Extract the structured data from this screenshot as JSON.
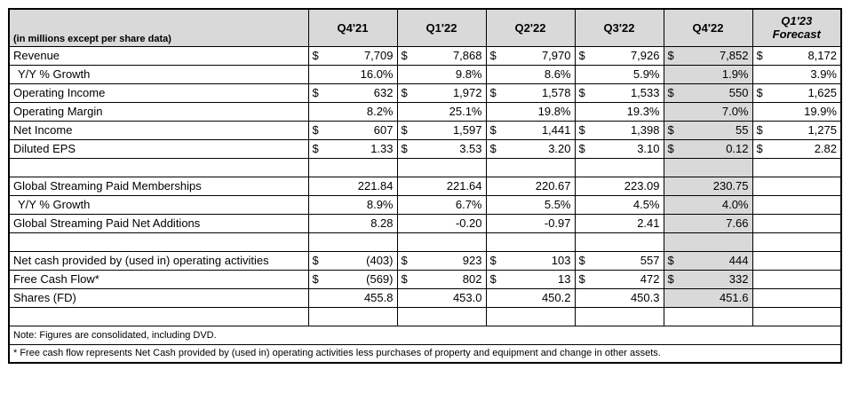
{
  "colors": {
    "header_bg": "#d9d9d9",
    "highlight_bg": "#d9d9d9",
    "border": "#000000",
    "text": "#000000"
  },
  "chart_data": {
    "type": "table",
    "corner_label": "(in millions except per share data)",
    "highlighted_column": "Q4'22",
    "columns": [
      {
        "id": "q4-21",
        "label": "Q4'21",
        "shaded": false,
        "italic": false
      },
      {
        "id": "q1-22",
        "label": "Q1'22",
        "shaded": false,
        "italic": false
      },
      {
        "id": "q2-22",
        "label": "Q2'22",
        "shaded": false,
        "italic": false
      },
      {
        "id": "q3-22",
        "label": "Q3'22",
        "shaded": false,
        "italic": false
      },
      {
        "id": "q4-22",
        "label": "Q4'22",
        "shaded": true,
        "italic": false
      },
      {
        "id": "q1-23",
        "label": "Q1'23",
        "label2": "Forecast",
        "shaded": false,
        "italic": true
      }
    ],
    "rows": [
      {
        "type": "data",
        "label": "Revenue",
        "indent": false,
        "shade": true,
        "cells": [
          {
            "d": "$",
            "v": "7,709"
          },
          {
            "d": "$",
            "v": "7,868"
          },
          {
            "d": "$",
            "v": "7,970"
          },
          {
            "d": "$",
            "v": "7,926"
          },
          {
            "d": "$",
            "v": "7,852"
          },
          {
            "d": "$",
            "v": "8,172"
          }
        ]
      },
      {
        "type": "data",
        "label": "Y/Y % Growth",
        "indent": true,
        "shade": true,
        "cells": [
          {
            "v": "16.0%"
          },
          {
            "v": "9.8%"
          },
          {
            "v": "8.6%"
          },
          {
            "v": "5.9%"
          },
          {
            "v": "1.9%"
          },
          {
            "v": "3.9%"
          }
        ]
      },
      {
        "type": "data",
        "label": "Operating Income",
        "indent": false,
        "shade": true,
        "cells": [
          {
            "d": "$",
            "v": "632"
          },
          {
            "d": "$",
            "v": "1,972"
          },
          {
            "d": "$",
            "v": "1,578"
          },
          {
            "d": "$",
            "v": "1,533"
          },
          {
            "d": "$",
            "v": "550"
          },
          {
            "d": "$",
            "v": "1,625"
          }
        ]
      },
      {
        "type": "data",
        "label": "Operating Margin",
        "indent": false,
        "shade": true,
        "cells": [
          {
            "v": "8.2%"
          },
          {
            "v": "25.1%"
          },
          {
            "v": "19.8%"
          },
          {
            "v": "19.3%"
          },
          {
            "v": "7.0%"
          },
          {
            "v": "19.9%"
          }
        ]
      },
      {
        "type": "data",
        "label": "Net Income",
        "indent": false,
        "shade": true,
        "cells": [
          {
            "d": "$",
            "v": "607"
          },
          {
            "d": "$",
            "v": "1,597"
          },
          {
            "d": "$",
            "v": "1,441"
          },
          {
            "d": "$",
            "v": "1,398"
          },
          {
            "d": "$",
            "v": "55"
          },
          {
            "d": "$",
            "v": "1,275"
          }
        ]
      },
      {
        "type": "data",
        "label": "Diluted EPS",
        "indent": false,
        "shade": true,
        "cells": [
          {
            "d": "$",
            "v": "1.33"
          },
          {
            "d": "$",
            "v": "3.53"
          },
          {
            "d": "$",
            "v": "3.20"
          },
          {
            "d": "$",
            "v": "3.10"
          },
          {
            "d": "$",
            "v": "0.12"
          },
          {
            "d": "$",
            "v": "2.82"
          }
        ]
      },
      {
        "type": "blank",
        "shade": true
      },
      {
        "type": "data",
        "label": "Global Streaming Paid Memberships",
        "indent": false,
        "shade": true,
        "cells": [
          {
            "v": "221.84"
          },
          {
            "v": "221.64"
          },
          {
            "v": "220.67"
          },
          {
            "v": "223.09"
          },
          {
            "v": "230.75"
          },
          {}
        ]
      },
      {
        "type": "data",
        "label": "Y/Y % Growth",
        "indent": true,
        "shade": true,
        "cells": [
          {
            "v": "8.9%"
          },
          {
            "v": "6.7%"
          },
          {
            "v": "5.5%"
          },
          {
            "v": "4.5%"
          },
          {
            "v": "4.0%"
          },
          {}
        ]
      },
      {
        "type": "data",
        "label": "Global Streaming Paid Net Additions",
        "indent": false,
        "shade": true,
        "cells": [
          {
            "v": "8.28"
          },
          {
            "v": "-0.20"
          },
          {
            "v": "-0.97"
          },
          {
            "v": "2.41"
          },
          {
            "v": "7.66"
          },
          {}
        ]
      },
      {
        "type": "blank",
        "shade": true
      },
      {
        "type": "data",
        "label": "Net cash provided by (used in) operating activities",
        "indent": false,
        "shade": true,
        "cells": [
          {
            "d": "$",
            "v": "(403)"
          },
          {
            "d": "$",
            "v": "923"
          },
          {
            "d": "$",
            "v": "103"
          },
          {
            "d": "$",
            "v": "557"
          },
          {
            "d": "$",
            "v": "444"
          },
          {}
        ]
      },
      {
        "type": "data",
        "label": "Free Cash Flow*",
        "indent": false,
        "shade": true,
        "cells": [
          {
            "d": "$",
            "v": "(569)"
          },
          {
            "d": "$",
            "v": "802"
          },
          {
            "d": "$",
            "v": "13"
          },
          {
            "d": "$",
            "v": "472"
          },
          {
            "d": "$",
            "v": "332"
          },
          {}
        ]
      },
      {
        "type": "data",
        "label": "Shares (FD)",
        "indent": false,
        "shade": true,
        "cells": [
          {
            "v": "455.8"
          },
          {
            "v": "453.0"
          },
          {
            "v": "450.2"
          },
          {
            "v": "450.3"
          },
          {
            "v": "451.6"
          },
          {}
        ]
      },
      {
        "type": "blank",
        "shade": false
      },
      {
        "type": "note",
        "text": "Note: Figures are consolidated, including DVD."
      },
      {
        "type": "note",
        "text": "* Free cash flow represents Net Cash provided by (used in) operating activities less purchases of property and equipment and change in other assets."
      }
    ]
  }
}
